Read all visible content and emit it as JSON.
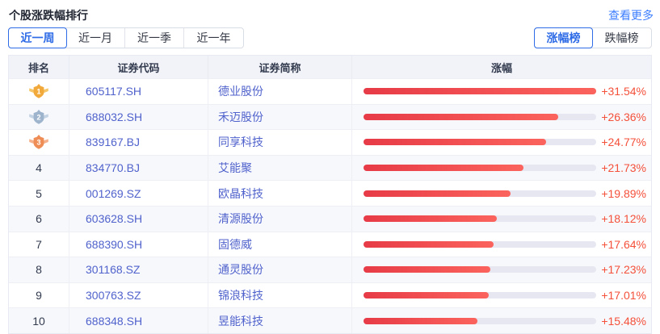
{
  "header": {
    "title": "个股涨跌幅排行",
    "more_link": "查看更多"
  },
  "period_tabs": [
    {
      "label": "近一周",
      "active": true
    },
    {
      "label": "近一月",
      "active": false
    },
    {
      "label": "近一季",
      "active": false
    },
    {
      "label": "近一年",
      "active": false
    }
  ],
  "board_tabs": [
    {
      "label": "涨幅榜",
      "active": true
    },
    {
      "label": "跌幅榜",
      "active": false
    }
  ],
  "table": {
    "columns": [
      "排名",
      "证券代码",
      "证券简称",
      "涨幅"
    ],
    "max_value": 31.54,
    "rows": [
      {
        "rank": 1,
        "medal": "gold",
        "code": "605117.SH",
        "name": "德业股份",
        "change": "+31.54%",
        "value": 31.54
      },
      {
        "rank": 2,
        "medal": "silver",
        "code": "688032.SH",
        "name": "禾迈股份",
        "change": "+26.36%",
        "value": 26.36
      },
      {
        "rank": 3,
        "medal": "bronze",
        "code": "839167.BJ",
        "name": "同享科技",
        "change": "+24.77%",
        "value": 24.77
      },
      {
        "rank": 4,
        "medal": null,
        "code": "834770.BJ",
        "name": "艾能聚",
        "change": "+21.73%",
        "value": 21.73
      },
      {
        "rank": 5,
        "medal": null,
        "code": "001269.SZ",
        "name": "欧晶科技",
        "change": "+19.89%",
        "value": 19.89
      },
      {
        "rank": 6,
        "medal": null,
        "code": "603628.SH",
        "name": "清源股份",
        "change": "+18.12%",
        "value": 18.12
      },
      {
        "rank": 7,
        "medal": null,
        "code": "688390.SH",
        "name": "固德威",
        "change": "+17.64%",
        "value": 17.64
      },
      {
        "rank": 8,
        "medal": null,
        "code": "301168.SZ",
        "name": "通灵股份",
        "change": "+17.23%",
        "value": 17.23
      },
      {
        "rank": 9,
        "medal": null,
        "code": "300763.SZ",
        "name": "锦浪科技",
        "change": "+17.01%",
        "value": 17.01
      },
      {
        "rank": 10,
        "medal": null,
        "code": "688348.SH",
        "name": "昱能科技",
        "change": "+15.48%",
        "value": 15.48
      }
    ]
  },
  "colors": {
    "accent_blue": "#2e6be6",
    "link_blue": "#3d7eff",
    "stock_link_blue": "#5062cc",
    "bar_gradient_start": "#e73b47",
    "bar_gradient_end": "#fb635d",
    "bar_track": "#e7e7f1",
    "percent_red": "#f4503a",
    "header_bg": "#f2f3f8",
    "zebra_row_bg": "#f7f8fc",
    "medal_gold": "#f2a93b",
    "medal_silver": "#9db4cc",
    "medal_bronze": "#ee8d55"
  }
}
